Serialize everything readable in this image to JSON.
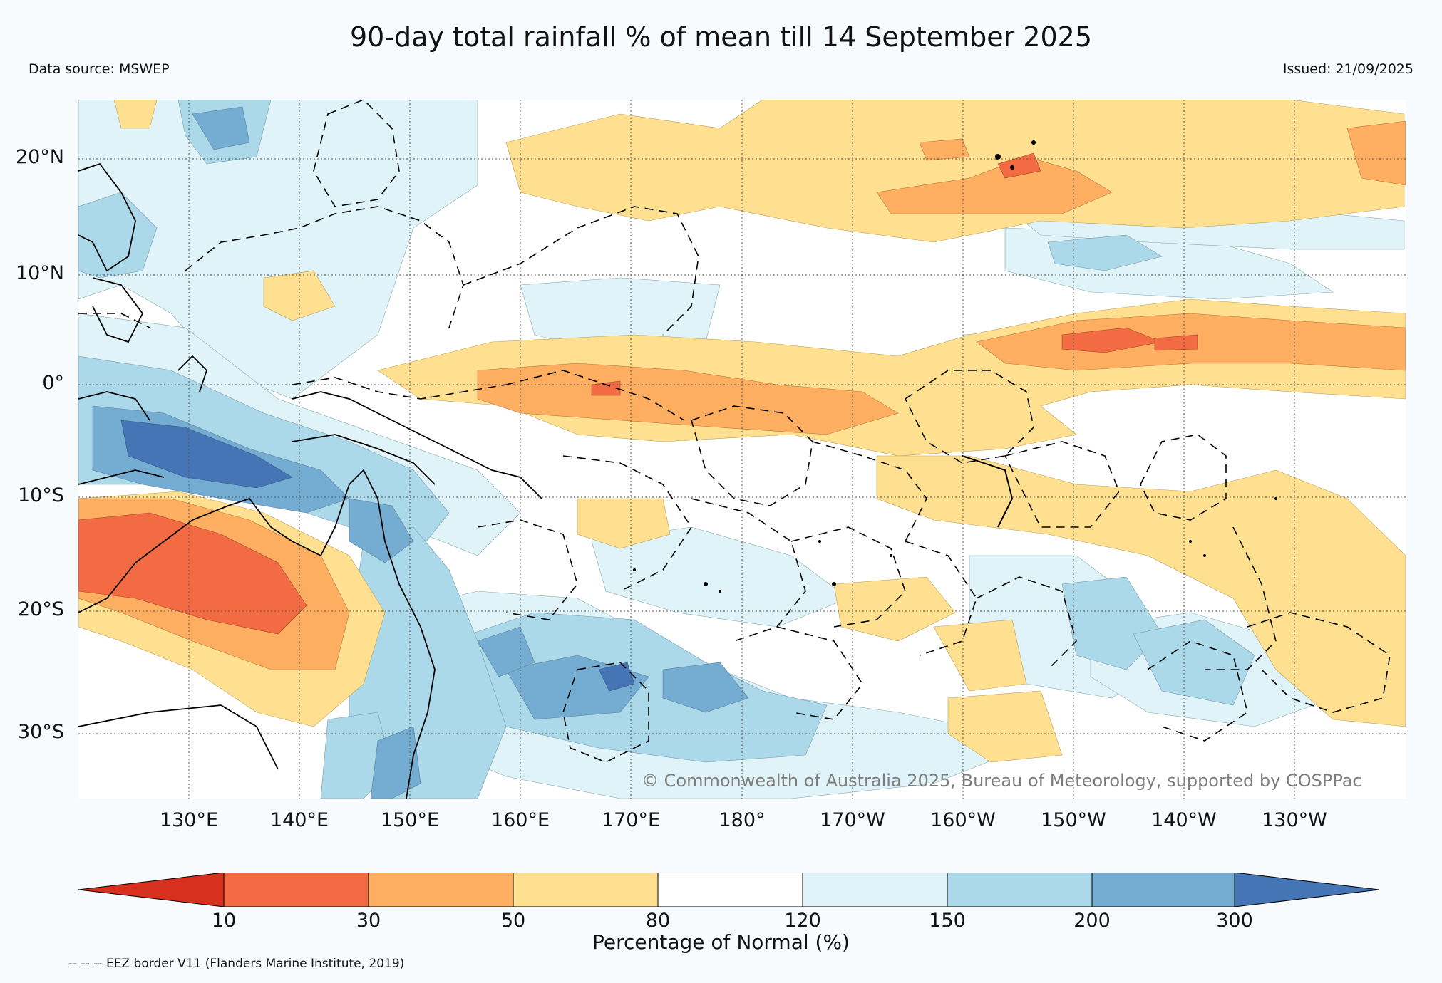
{
  "title": "90-day total rainfall % of mean till 14 September 2025",
  "data_source": "Data source: MSWEP",
  "issued": "Issued: 21/09/2025",
  "lat_labels": [
    "20°N",
    "10°N",
    "0°",
    "10°S",
    "20°S",
    "30°S"
  ],
  "lon_labels": [
    "130°E",
    "140°E",
    "150°E",
    "160°E",
    "170°E",
    "180°",
    "170°W",
    "160°W",
    "150°W",
    "140°W",
    "130°W"
  ],
  "copyright": "© Commonwealth of Australia 2025, Bureau of Meteorology, supported by COSPPac",
  "colorbar": {
    "title": "Percentage of Normal (%)",
    "ticks": [
      "10",
      "30",
      "50",
      "80",
      "120",
      "150",
      "200",
      "300"
    ],
    "colors": [
      "#d7301f",
      "#f26b43",
      "#fdae61",
      "#fee090",
      "#ffffff",
      "#e0f3f8",
      "#abd9e9",
      "#74add1",
      "#4575b4"
    ]
  },
  "eez_note": "-- -- -- EEZ border V11 (Flanders Marine Institute, 2019)",
  "colors": {
    "background": "#f7fbfd",
    "copyright_text": "#7d7d7d"
  }
}
